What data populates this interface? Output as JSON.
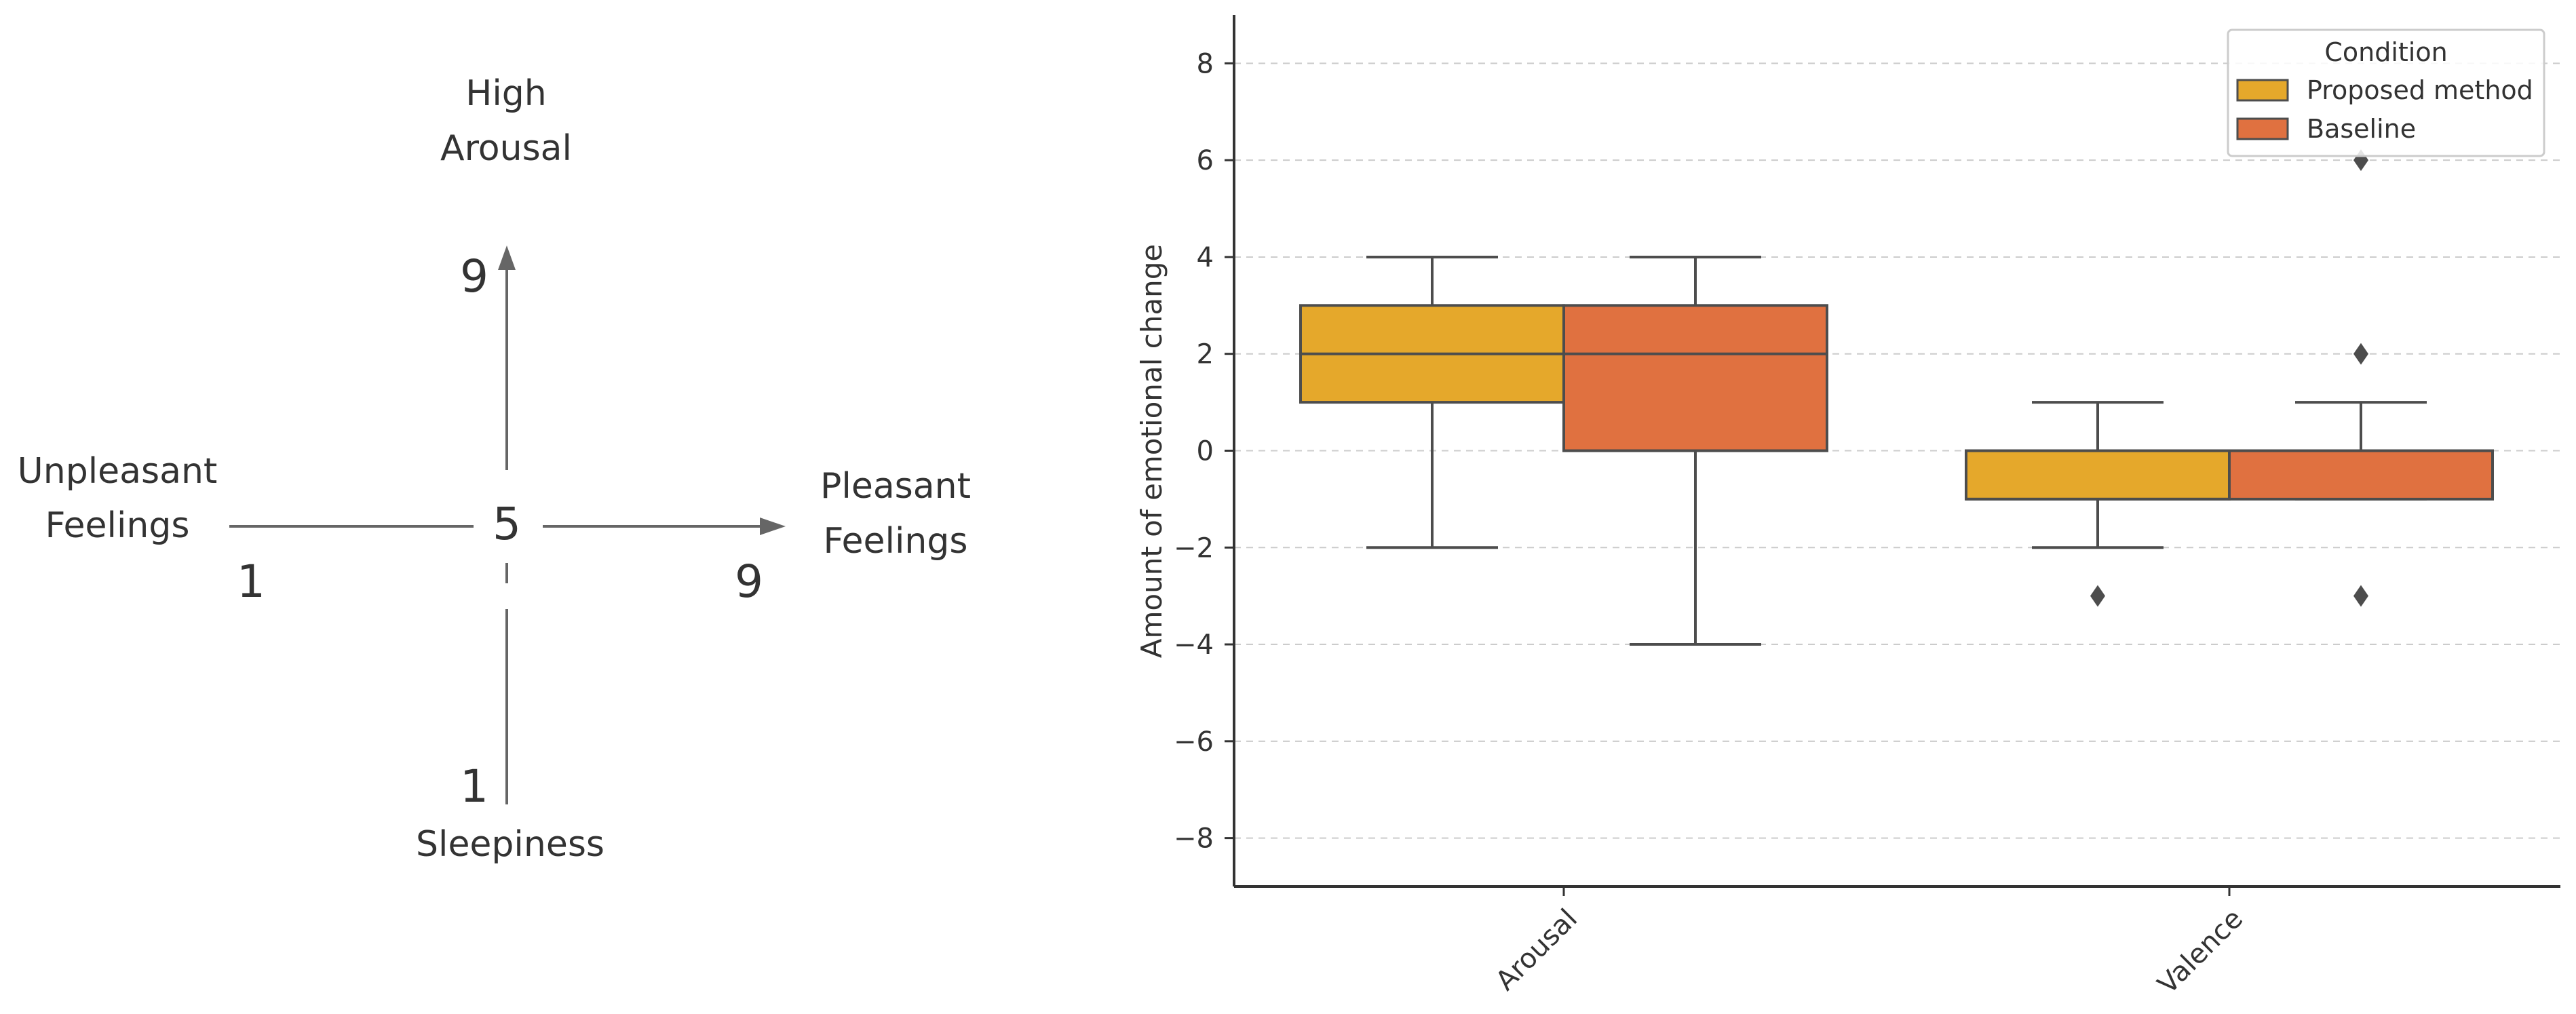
{
  "diagram": {
    "top_label_line1": "High",
    "top_label_line2": "Arousal",
    "bottom_label": "Sleepiness",
    "left_label_line1": "Unpleasant",
    "left_label_line2": "Feelings",
    "right_label_line1": "Pleasant",
    "right_label_line2": "Feelings",
    "center_value": "5",
    "vertical_max": "9",
    "vertical_min": "1",
    "horizontal_min": "1",
    "horizontal_max": "9",
    "axis_color": "#666666"
  },
  "chart_data": {
    "type": "box",
    "title": "",
    "xlabel": "",
    "ylabel": "Amount of emotional change",
    "ylim": [
      -9,
      9
    ],
    "yticks": [
      8,
      6,
      4,
      2,
      0,
      -2,
      -4,
      -6,
      -8
    ],
    "ytick_labels": [
      "8",
      "6",
      "4",
      "2",
      "0",
      "−2",
      "−4",
      "−6",
      "−8"
    ],
    "grid": true,
    "categories": [
      "Arousal",
      "Valence"
    ],
    "legend": {
      "title": "Condition",
      "position": "top-right"
    },
    "series": [
      {
        "name": "Proposed method",
        "color": "#E5A82B",
        "boxes": [
          {
            "category": "Arousal",
            "whisker_low": -2,
            "q1": 1,
            "median": 2,
            "q3": 3,
            "whisker_high": 4,
            "outliers": []
          },
          {
            "category": "Valence",
            "whisker_low": -2,
            "q1": -1,
            "median": -1,
            "q3": 0,
            "whisker_high": 1,
            "outliers": [
              -3
            ]
          }
        ]
      },
      {
        "name": "Baseline",
        "color": "#E07140",
        "boxes": [
          {
            "category": "Arousal",
            "whisker_low": -4,
            "q1": 0,
            "median": 2,
            "q3": 3,
            "whisker_high": 4,
            "outliers": []
          },
          {
            "category": "Valence",
            "whisker_low": -1,
            "q1": -1,
            "median": 0,
            "q3": 0,
            "whisker_high": 1,
            "outliers": [
              -3,
              2,
              6
            ]
          }
        ]
      }
    ],
    "box_edge_color": "#4d4d4d",
    "grid_color": "#cccccc"
  }
}
